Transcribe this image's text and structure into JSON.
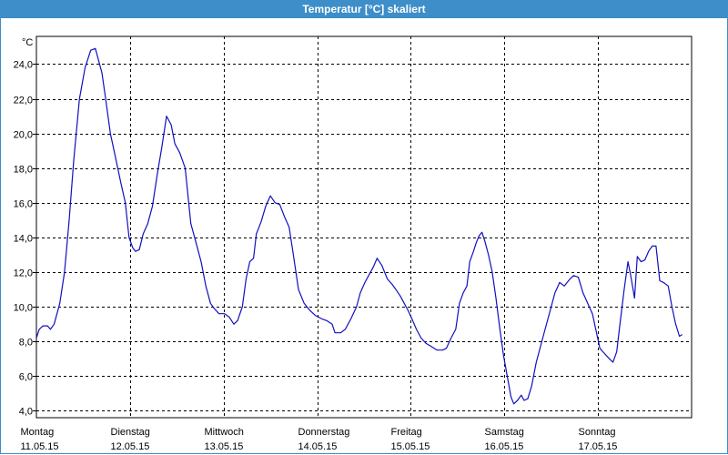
{
  "window": {
    "title": "Temperatur [°C] skaliert"
  },
  "colors": {
    "titlebar": "#3d8ec9",
    "line": "#1010c0",
    "grid": "#000000"
  },
  "chart_data": {
    "type": "line",
    "title": "Temperatur [°C] skaliert",
    "ylabel": "°C",
    "xlabel": "",
    "ylim": [
      3.6,
      25.6
    ],
    "xlim": [
      0,
      7
    ],
    "grid": true,
    "y_ticks": [
      "4,0",
      "6,0",
      "8,0",
      "10,0",
      "12,0",
      "14,0",
      "16,0",
      "18,0",
      "20,0",
      "22,0",
      "24,0"
    ],
    "x_ticks": [
      {
        "day": "Montag",
        "date": "11.05.15"
      },
      {
        "day": "Dienstag",
        "date": "12.05.15"
      },
      {
        "day": "Mittwoch",
        "date": "13.05.15"
      },
      {
        "day": "Donnerstag",
        "date": "14.05.15"
      },
      {
        "day": "Freitag",
        "date": "15.05.15"
      },
      {
        "day": "Samstag",
        "date": "16.05.15"
      },
      {
        "day": "Sonntag",
        "date": "17.05.15"
      }
    ],
    "series": [
      {
        "points": [
          [
            0.0,
            8.2
          ],
          [
            0.03,
            8.7
          ],
          [
            0.07,
            8.9
          ],
          [
            0.12,
            8.9
          ],
          [
            0.15,
            8.7
          ],
          [
            0.19,
            9.0
          ],
          [
            0.25,
            10.2
          ],
          [
            0.3,
            12.0
          ],
          [
            0.35,
            15.0
          ],
          [
            0.4,
            18.5
          ],
          [
            0.46,
            22.0
          ],
          [
            0.52,
            23.8
          ],
          [
            0.58,
            24.8
          ],
          [
            0.63,
            24.9
          ],
          [
            0.7,
            23.5
          ],
          [
            0.74,
            22.0
          ],
          [
            0.79,
            20.0
          ],
          [
            0.85,
            18.5
          ],
          [
            0.9,
            17.2
          ],
          [
            0.95,
            16.0
          ],
          [
            0.99,
            14.0
          ],
          [
            1.03,
            13.4
          ],
          [
            1.06,
            13.2
          ],
          [
            1.1,
            13.3
          ],
          [
            1.14,
            14.2
          ],
          [
            1.19,
            14.8
          ],
          [
            1.24,
            15.8
          ],
          [
            1.29,
            17.6
          ],
          [
            1.34,
            19.2
          ],
          [
            1.39,
            21.0
          ],
          [
            1.44,
            20.5
          ],
          [
            1.48,
            19.4
          ],
          [
            1.53,
            18.9
          ],
          [
            1.59,
            18.0
          ],
          [
            1.65,
            14.8
          ],
          [
            1.7,
            13.8
          ],
          [
            1.76,
            12.6
          ],
          [
            1.81,
            11.2
          ],
          [
            1.86,
            10.2
          ],
          [
            1.9,
            9.9
          ],
          [
            1.95,
            9.6
          ],
          [
            2.01,
            9.6
          ],
          [
            2.06,
            9.4
          ],
          [
            2.11,
            9.0
          ],
          [
            2.15,
            9.2
          ],
          [
            2.2,
            10.0
          ],
          [
            2.24,
            11.6
          ],
          [
            2.28,
            12.6
          ],
          [
            2.32,
            12.8
          ],
          [
            2.35,
            14.2
          ],
          [
            2.4,
            14.9
          ],
          [
            2.45,
            15.8
          ],
          [
            2.5,
            16.4
          ],
          [
            2.55,
            16.0
          ],
          [
            2.6,
            15.9
          ],
          [
            2.65,
            15.2
          ],
          [
            2.7,
            14.6
          ],
          [
            2.74,
            13.2
          ],
          [
            2.8,
            11.0
          ],
          [
            2.86,
            10.2
          ],
          [
            2.92,
            9.8
          ],
          [
            2.98,
            9.5
          ],
          [
            3.05,
            9.3
          ],
          [
            3.1,
            9.2
          ],
          [
            3.16,
            9.0
          ],
          [
            3.19,
            8.5
          ],
          [
            3.25,
            8.5
          ],
          [
            3.3,
            8.7
          ],
          [
            3.36,
            9.3
          ],
          [
            3.42,
            10.0
          ],
          [
            3.46,
            10.8
          ],
          [
            3.51,
            11.4
          ],
          [
            3.55,
            11.8
          ],
          [
            3.6,
            12.3
          ],
          [
            3.64,
            12.8
          ],
          [
            3.69,
            12.4
          ],
          [
            3.75,
            11.6
          ],
          [
            3.8,
            11.3
          ],
          [
            3.84,
            11.0
          ],
          [
            3.89,
            10.6
          ],
          [
            3.93,
            10.2
          ],
          [
            3.97,
            9.8
          ],
          [
            4.02,
            9.2
          ],
          [
            4.06,
            8.7
          ],
          [
            4.11,
            8.2
          ],
          [
            4.16,
            7.9
          ],
          [
            4.22,
            7.7
          ],
          [
            4.28,
            7.5
          ],
          [
            4.34,
            7.5
          ],
          [
            4.38,
            7.6
          ],
          [
            4.43,
            8.2
          ],
          [
            4.48,
            8.7
          ],
          [
            4.52,
            10.2
          ],
          [
            4.56,
            10.8
          ],
          [
            4.6,
            11.2
          ],
          [
            4.63,
            12.6
          ],
          [
            4.67,
            13.2
          ],
          [
            4.7,
            13.7
          ],
          [
            4.73,
            14.1
          ],
          [
            4.76,
            14.3
          ],
          [
            4.79,
            13.8
          ],
          [
            4.83,
            13.0
          ],
          [
            4.87,
            12.0
          ],
          [
            4.91,
            10.5
          ],
          [
            4.95,
            8.8
          ],
          [
            4.99,
            7.2
          ],
          [
            5.03,
            6.0
          ],
          [
            5.07,
            4.8
          ],
          [
            5.1,
            4.4
          ],
          [
            5.14,
            4.6
          ],
          [
            5.18,
            4.9
          ],
          [
            5.21,
            4.6
          ],
          [
            5.25,
            4.7
          ],
          [
            5.29,
            5.4
          ],
          [
            5.34,
            6.8
          ],
          [
            5.39,
            7.8
          ],
          [
            5.44,
            8.8
          ],
          [
            5.49,
            9.8
          ],
          [
            5.54,
            10.8
          ],
          [
            5.59,
            11.4
          ],
          [
            5.64,
            11.2
          ],
          [
            5.7,
            11.6
          ],
          [
            5.74,
            11.8
          ],
          [
            5.79,
            11.7
          ],
          [
            5.84,
            10.8
          ],
          [
            5.89,
            10.2
          ],
          [
            5.94,
            9.6
          ],
          [
            5.98,
            8.6
          ],
          [
            6.02,
            7.6
          ],
          [
            6.07,
            7.3
          ],
          [
            6.12,
            7.0
          ],
          [
            6.16,
            6.8
          ],
          [
            6.2,
            7.4
          ],
          [
            6.23,
            8.8
          ],
          [
            6.28,
            11.0
          ],
          [
            6.32,
            12.6
          ],
          [
            6.35,
            11.8
          ],
          [
            6.39,
            10.5
          ],
          [
            6.42,
            12.9
          ],
          [
            6.46,
            12.6
          ],
          [
            6.5,
            12.7
          ],
          [
            6.54,
            13.2
          ],
          [
            6.58,
            13.5
          ],
          [
            6.62,
            13.5
          ],
          [
            6.66,
            11.5
          ],
          [
            6.7,
            11.4
          ],
          [
            6.75,
            11.2
          ],
          [
            6.79,
            10.0
          ],
          [
            6.83,
            9.0
          ],
          [
            6.87,
            8.3
          ],
          [
            6.9,
            8.4
          ]
        ]
      }
    ]
  }
}
